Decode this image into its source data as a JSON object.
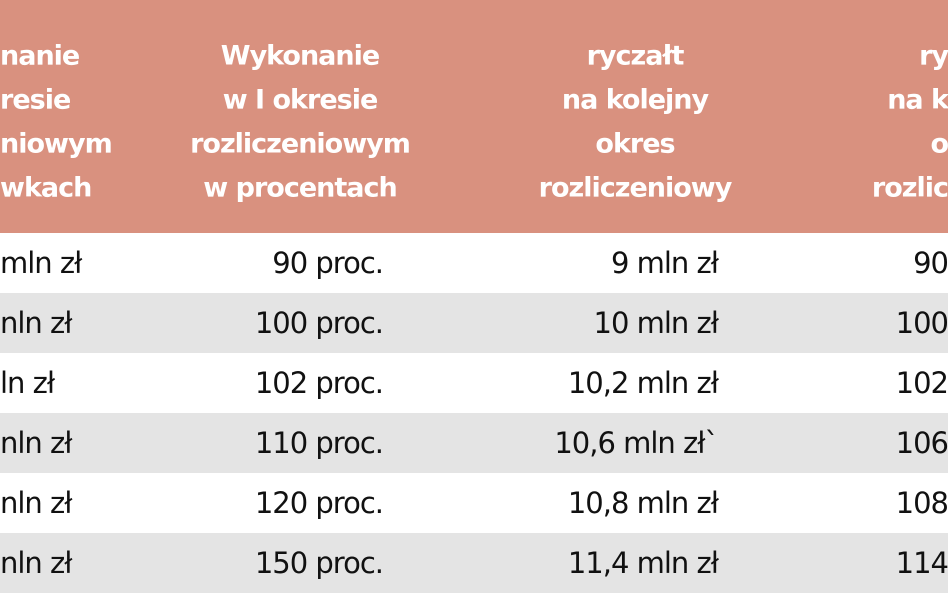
{
  "table": {
    "header": [
      [
        "nanie",
        "resie",
        "niowym",
        "wkach"
      ],
      [
        "Wykonanie",
        "w I okresie",
        "rozliczeniowym",
        "w procentach"
      ],
      [
        "ryczałt",
        "na kolejny",
        "okres",
        "rozliczeniowy"
      ],
      [
        "ry",
        "na k",
        "o",
        "rozlic"
      ]
    ],
    "rows": [
      [
        "mln zł",
        "90 proc.",
        "9 mln zł",
        "90"
      ],
      [
        "nln zł",
        "100 proc.",
        "10 mln zł",
        "100"
      ],
      [
        "ln zł",
        "102 proc.",
        "10,2 mln zł",
        "102"
      ],
      [
        "nln zł",
        "110 proc.",
        "10,6 mln zł`",
        "106"
      ],
      [
        "nln zł",
        "120 proc.",
        "10,8 mln zł",
        "108"
      ],
      [
        "nln zł",
        "150 proc.",
        "11,4 mln zł",
        "114"
      ]
    ]
  }
}
